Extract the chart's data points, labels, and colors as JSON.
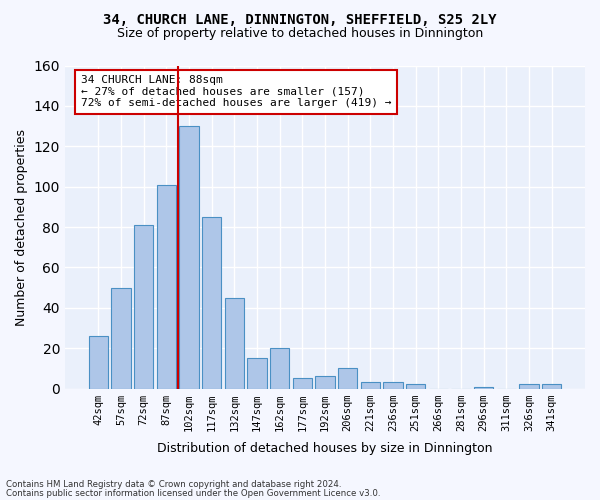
{
  "title1": "34, CHURCH LANE, DINNINGTON, SHEFFIELD, S25 2LY",
  "title2": "Size of property relative to detached houses in Dinnington",
  "xlabel": "Distribution of detached houses by size in Dinnington",
  "ylabel": "Number of detached properties",
  "bar_labels": [
    "42sqm",
    "57sqm",
    "72sqm",
    "87sqm",
    "102sqm",
    "117sqm",
    "132sqm",
    "147sqm",
    "162sqm",
    "177sqm",
    "192sqm",
    "206sqm",
    "221sqm",
    "236sqm",
    "251sqm",
    "266sqm",
    "281sqm",
    "296sqm",
    "311sqm",
    "326sqm",
    "341sqm"
  ],
  "bar_values": [
    26,
    50,
    81,
    101,
    130,
    85,
    45,
    15,
    20,
    5,
    6,
    10,
    3,
    3,
    2,
    0,
    0,
    1,
    0,
    2,
    2
  ],
  "bar_color": "#aec6e8",
  "bar_edge_color": "#4a90c4",
  "bg_color": "#eaf0fb",
  "grid_color": "#ffffff",
  "vline_x": 3.5,
  "vline_color": "#cc0000",
  "annotation_line1": "34 CHURCH LANE: 88sqm",
  "annotation_line2": "← 27% of detached houses are smaller (157)",
  "annotation_line3": "72% of semi-detached houses are larger (419) →",
  "annotation_box_color": "#ffffff",
  "annotation_box_edge": "#cc0000",
  "ylim": [
    0,
    160
  ],
  "yticks": [
    0,
    20,
    40,
    60,
    80,
    100,
    120,
    140,
    160
  ],
  "footer1": "Contains HM Land Registry data © Crown copyright and database right 2024.",
  "footer2": "Contains public sector information licensed under the Open Government Licence v3.0."
}
